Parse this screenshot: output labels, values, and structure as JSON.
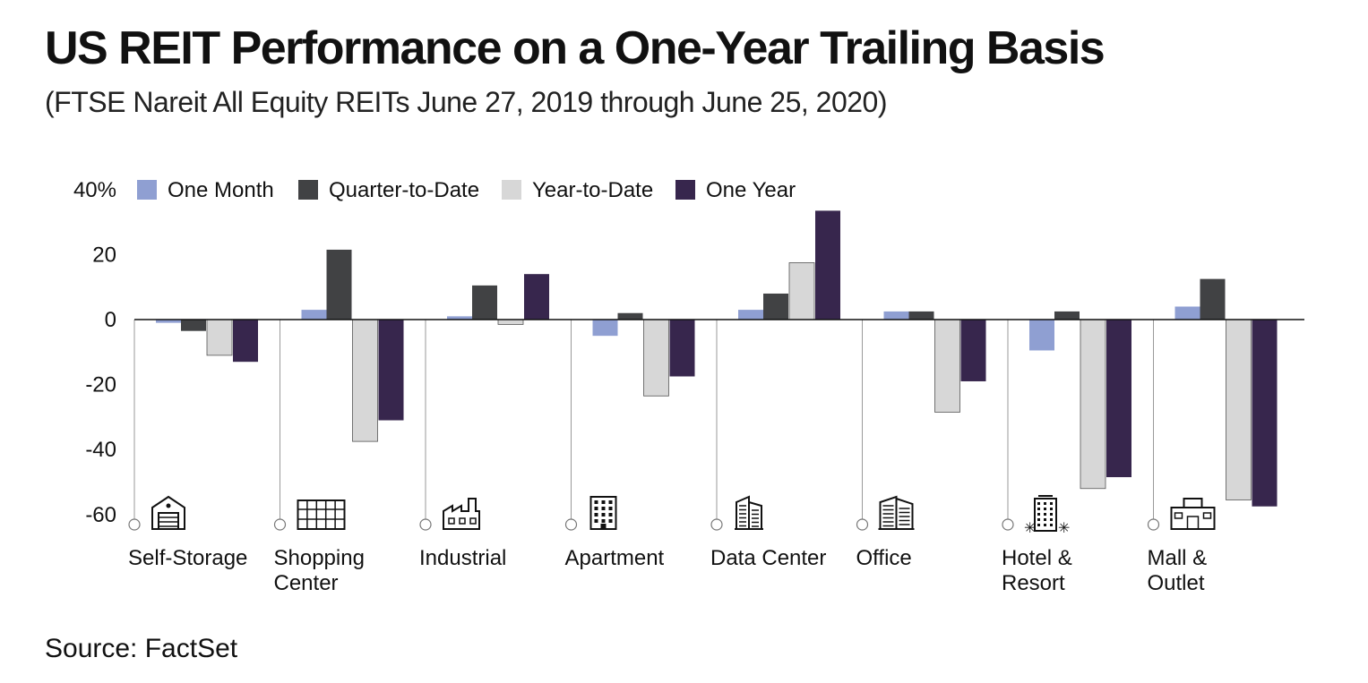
{
  "title": "US REIT Performance on a One-Year Trailing Basis",
  "subtitle": "(FTSE Nareit All Equity REITs June 27, 2019 through June 25, 2020)",
  "source": "Source: FactSet",
  "chart_data": {
    "type": "bar",
    "title": "US REIT Performance on a One-Year Trailing Basis",
    "subtitle": "(FTSE Nareit All Equity REITs June 27, 2019 through June 25, 2020)",
    "xlabel": "",
    "ylabel": "",
    "ylim": [
      -60,
      40
    ],
    "yticks": [
      40,
      20,
      0,
      -20,
      -40,
      -60
    ],
    "ytick_labels": [
      "40%",
      "20",
      "0",
      "-20",
      "-40",
      "-60"
    ],
    "legend_position": "top",
    "grid": false,
    "categories": [
      [
        "Self-Storage"
      ],
      [
        "Shopping",
        "Center"
      ],
      [
        "Industrial"
      ],
      [
        "Apartment"
      ],
      [
        "Data Center"
      ],
      [
        "Office"
      ],
      [
        "Hotel &",
        "Resort"
      ],
      [
        "Mall &",
        "Outlet"
      ]
    ],
    "category_icons": [
      "warehouse-icon",
      "shopping-center-icon",
      "factory-icon",
      "apartment-building-icon",
      "data-center-icon",
      "office-building-icon",
      "hotel-resort-icon",
      "mall-icon"
    ],
    "series": [
      {
        "name": "One Month",
        "color": "#8f9fd2",
        "values": [
          -1,
          3,
          1,
          -5,
          3,
          2.5,
          -9.5,
          4
        ]
      },
      {
        "name": "Quarter-to-Date",
        "color": "#414244",
        "values": [
          -3.5,
          21.5,
          10.5,
          2,
          8,
          2.5,
          2.5,
          12.5
        ]
      },
      {
        "name": "Year-to-Date",
        "color": "#d7d7d7",
        "values": [
          -11,
          -37.5,
          -1.5,
          -23.5,
          17.5,
          -28.5,
          -52,
          -55.5
        ]
      },
      {
        "name": "One Year",
        "color": "#37264d",
        "values": [
          -13,
          -31,
          14,
          -17.5,
          33.5,
          -19,
          -48.5,
          -57.5
        ]
      }
    ]
  }
}
